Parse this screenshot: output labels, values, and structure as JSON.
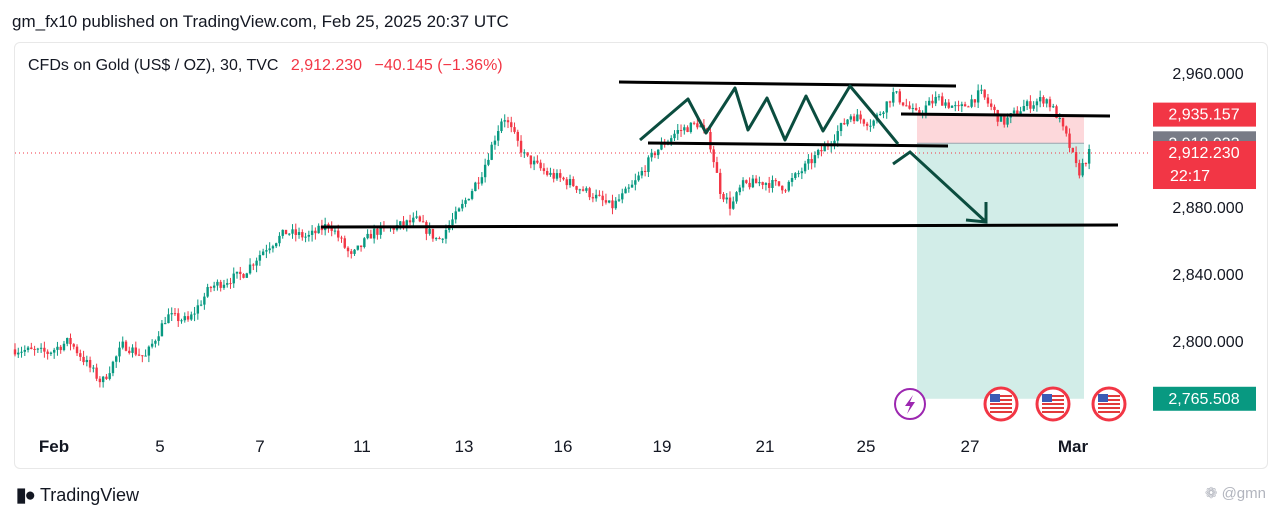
{
  "header": {
    "published": "gm_fx10 published on TradingView.com, Feb 25, 2025 20:37 UTC"
  },
  "legend": {
    "symbol": "CFDs on Gold (US$ / OZ), 30, TVC",
    "price": "2,912.230",
    "change": "−40.145 (−1.36%)"
  },
  "footer": {
    "brand": "TradingView",
    "watermark": "❁ @gmn"
  },
  "colors": {
    "up": "#089981",
    "down": "#f23645",
    "line": "#000000",
    "arrow": "#0b4d3f",
    "stop_zone": "#fdd8db",
    "target_zone": "#d2ede8",
    "grey_label": "#787b86"
  },
  "chart_data": {
    "type": "candlestick",
    "title": "CFDs on Gold (US$ / OZ), 30, TVC",
    "y_ticks": [
      "2,960.000",
      "2,880.000",
      "2,840.000",
      "2,800.000"
    ],
    "y_tick_values": [
      2960,
      2880,
      2840,
      2800
    ],
    "x_ticks": [
      "Feb",
      "5",
      "7",
      "11",
      "13",
      "16",
      "19",
      "21",
      "25",
      "27",
      "Mar"
    ],
    "ylim": [
      2755,
      2985
    ],
    "xlim": [
      0,
      100
    ],
    "price_path": [
      [
        0,
        2795
      ],
      [
        3,
        2793
      ],
      [
        5,
        2800
      ],
      [
        8,
        2775
      ],
      [
        10,
        2798
      ],
      [
        12,
        2790
      ],
      [
        14,
        2815
      ],
      [
        16,
        2812
      ],
      [
        18,
        2832
      ],
      [
        21,
        2840
      ],
      [
        23,
        2855
      ],
      [
        25,
        2865
      ],
      [
        27,
        2862
      ],
      [
        29,
        2870
      ],
      [
        31,
        2850
      ],
      [
        33,
        2865
      ],
      [
        35,
        2868
      ],
      [
        37,
        2872
      ],
      [
        39,
        2860
      ],
      [
        41,
        2878
      ],
      [
        43,
        2900
      ],
      [
        45,
        2935
      ],
      [
        47,
        2910
      ],
      [
        49,
        2900
      ],
      [
        51,
        2895
      ],
      [
        53,
        2888
      ],
      [
        55,
        2880
      ],
      [
        57,
        2893
      ],
      [
        59,
        2913
      ],
      [
        61,
        2925
      ],
      [
        63,
        2930
      ],
      [
        64,
        2920
      ],
      [
        65,
        2890
      ],
      [
        66,
        2880
      ],
      [
        67,
        2893
      ],
      [
        69,
        2895
      ],
      [
        71,
        2892
      ],
      [
        73,
        2905
      ],
      [
        75,
        2918
      ],
      [
        77,
        2935
      ],
      [
        79,
        2930
      ],
      [
        81,
        2948
      ],
      [
        83,
        2935
      ],
      [
        85,
        2945
      ],
      [
        87,
        2938
      ],
      [
        89,
        2948
      ],
      [
        91,
        2930
      ],
      [
        93,
        2940
      ],
      [
        95,
        2945
      ],
      [
        96,
        2935
      ],
      [
        97,
        2920
      ],
      [
        98,
        2900
      ],
      [
        99,
        2912
      ]
    ],
    "levels": {
      "resistance": 2953,
      "range_bottom": 2918,
      "support": 2881
    },
    "position": {
      "entry": 2918.033,
      "stop": 2935.157,
      "target": 2765.508
    },
    "price_labels": [
      {
        "text": "2,935.157",
        "value": 2935.157,
        "color": "#f23645"
      },
      {
        "text": "2,918.033",
        "value": 2918.033,
        "color": "#787b86"
      },
      {
        "text": "2,912.230",
        "sub": "22:17",
        "value": 2912.23,
        "color": "#f23645"
      },
      {
        "text": "2,765.508",
        "value": 2765.508,
        "color": "#089981"
      }
    ],
    "event_icons": [
      "lightning-event",
      "us-flag",
      "us-flag",
      "us-flag"
    ]
  }
}
